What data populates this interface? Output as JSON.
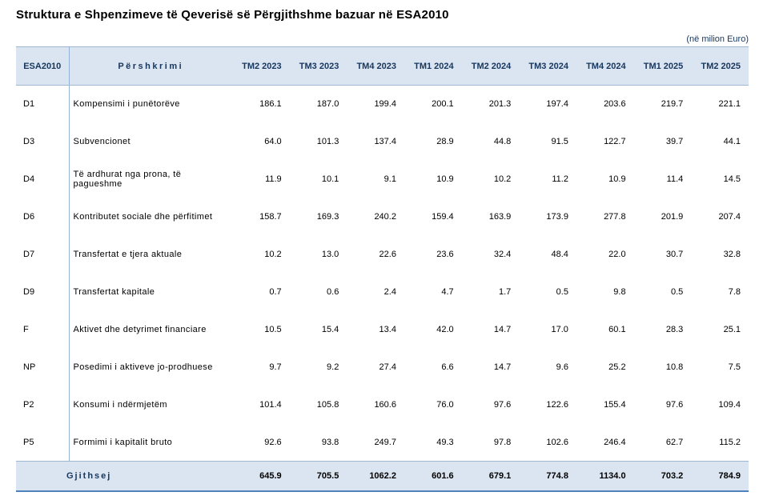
{
  "title": "Struktura e Shpenzimeve të Qeverisë së Përgjithshme bazuar në ESA2010",
  "unit_note": "(në milion Euro)",
  "chart_data": {
    "type": "table",
    "title": "Struktura e Shpenzimeve të Qeverisë së Përgjithshme bazuar në ESA2010",
    "unit": "në milion Euro",
    "columns": [
      "ESA2010",
      "Përshkrimi",
      "TM2 2023",
      "TM3 2023",
      "TM4 2023",
      "TM1 2024",
      "TM2 2024",
      "TM3 2024",
      "TM4 2024",
      "TM1 2025",
      "TM2 2025"
    ],
    "rows": [
      [
        "D1",
        "Kompensimi i punëtorëve",
        186.1,
        187.0,
        199.4,
        200.1,
        201.3,
        197.4,
        203.6,
        219.7,
        221.1
      ],
      [
        "D3",
        "Subvencionet",
        64.0,
        101.3,
        137.4,
        28.9,
        44.8,
        91.5,
        122.7,
        39.7,
        44.1
      ],
      [
        "D4",
        "Të ardhurat nga prona, të pagueshme",
        11.9,
        10.1,
        9.1,
        10.9,
        10.2,
        11.2,
        10.9,
        11.4,
        14.5
      ],
      [
        "D6",
        "Kontributet sociale dhe përfitimet",
        158.7,
        169.3,
        240.2,
        159.4,
        163.9,
        173.9,
        277.8,
        201.9,
        207.4
      ],
      [
        "D7",
        "Transfertat e tjera aktuale",
        10.2,
        13.0,
        22.6,
        23.6,
        32.4,
        48.4,
        22.0,
        30.7,
        32.8
      ],
      [
        "D9",
        "Transfertat kapitale",
        0.7,
        0.6,
        2.4,
        4.7,
        1.7,
        0.5,
        9.8,
        0.5,
        7.8
      ],
      [
        "F",
        "Aktivet dhe detyrimet financiare",
        10.5,
        15.4,
        13.4,
        42.0,
        14.7,
        17.0,
        60.1,
        28.3,
        25.1
      ],
      [
        "NP",
        "Posedimi i aktiveve jo-prodhuese",
        9.7,
        9.2,
        27.4,
        6.6,
        14.7,
        9.6,
        25.2,
        10.8,
        7.5
      ],
      [
        "P2",
        "Konsumi i ndërmjetëm",
        101.4,
        105.8,
        160.6,
        76.0,
        97.6,
        122.6,
        155.4,
        97.6,
        109.4
      ],
      [
        "P5",
        "Formimi i kapitalit bruto",
        92.6,
        93.8,
        249.7,
        49.3,
        97.8,
        102.6,
        246.4,
        62.7,
        115.2
      ]
    ],
    "total_row": [
      "Gjithsej",
      645.9,
      705.5,
      1062.2,
      601.6,
      679.1,
      774.8,
      1134.0,
      703.2,
      784.9
    ],
    "layout": {
      "grid": "horizontal rules only at header and total; vertical rule after first column",
      "value_alignment": "right"
    }
  },
  "colors": {
    "header_fill": "#dbe5f1",
    "grid_line": "#9eb6ce",
    "vertical_divider": "#95b3d7",
    "bottom_border": "#4f81bd",
    "header_text": "#17365d"
  }
}
